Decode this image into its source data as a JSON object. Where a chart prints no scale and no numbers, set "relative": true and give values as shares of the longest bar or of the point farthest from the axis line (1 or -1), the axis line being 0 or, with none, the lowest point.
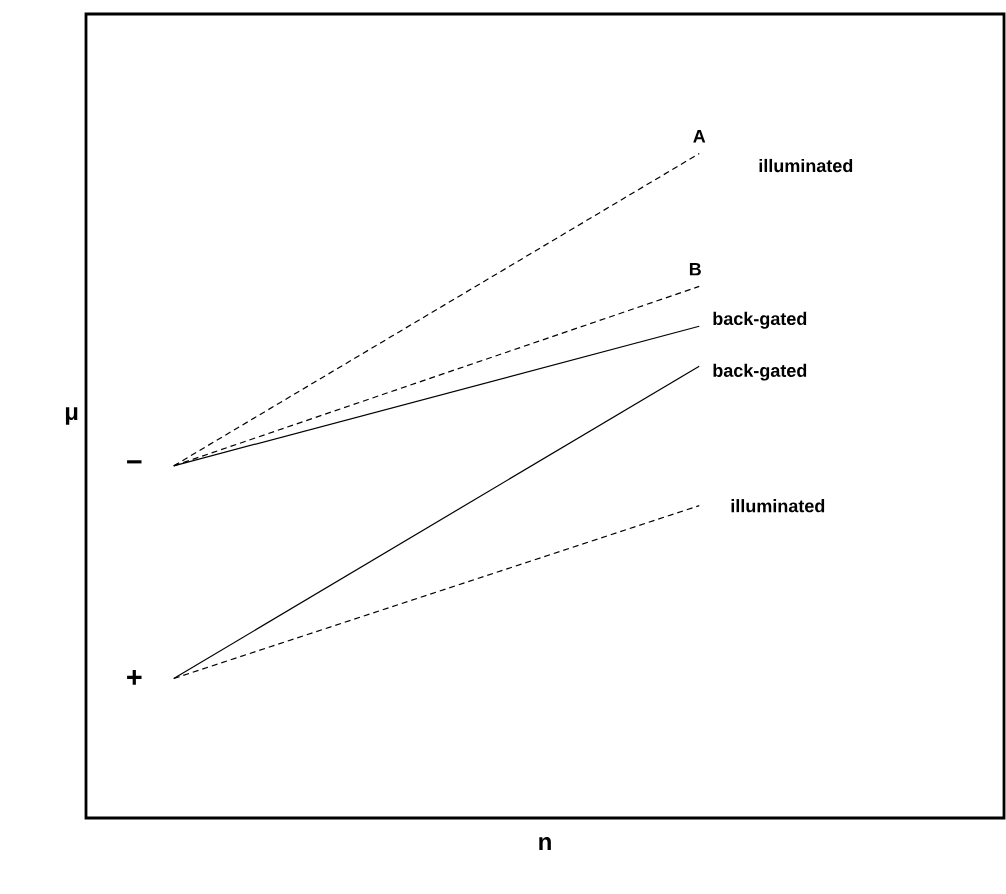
{
  "chart_data": {
    "type": "line",
    "xlabel": "n",
    "ylabel": "μ",
    "categories": [
      null,
      null
    ],
    "relative": true,
    "tick_labels": false,
    "series": [
      {
        "name": "A",
        "color": "#000000",
        "line_style": "dashed",
        "values": [
          0.53,
          1.0
        ]
      },
      {
        "name": "B",
        "color": "#000000",
        "line_style": "dashed",
        "values": [
          0.53,
          0.8
        ]
      },
      {
        "name": "back-gated",
        "color": "#000000",
        "line_style": "solid",
        "values": [
          0.53,
          0.74
        ]
      },
      {
        "name": "back-gated",
        "color": "#000000",
        "line_style": "solid",
        "values": [
          0.21,
          0.68
        ]
      },
      {
        "name": "illuminated",
        "color": "#000000",
        "line_style": "dashed",
        "values": [
          0.21,
          0.47
        ]
      }
    ],
    "annotations": [
      "−",
      "+",
      "illuminated"
    ]
  }
}
